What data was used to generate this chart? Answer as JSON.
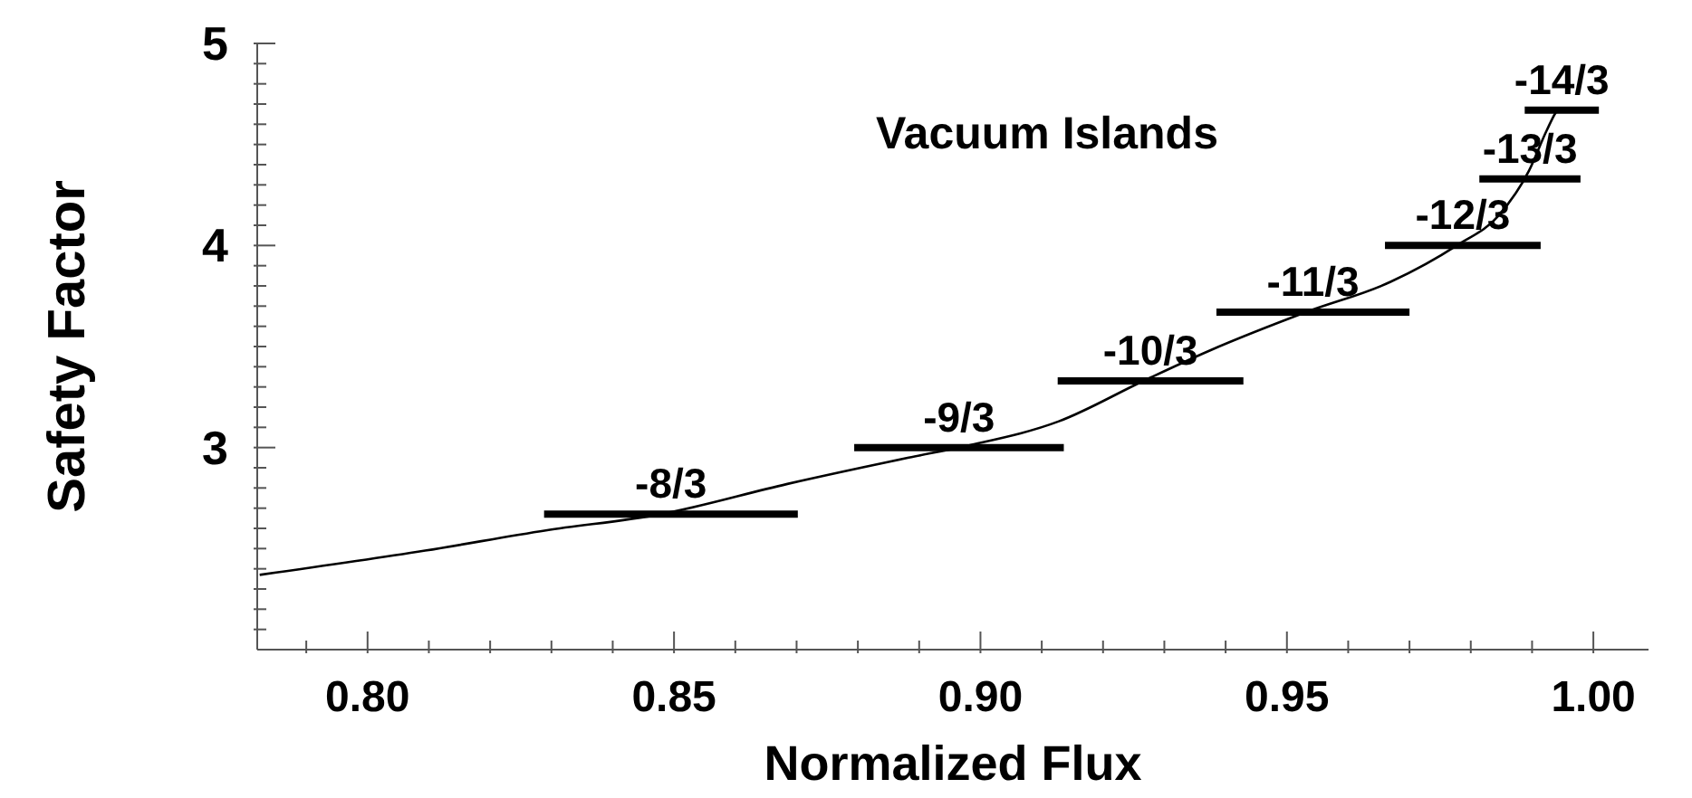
{
  "chart_data": {
    "type": "line",
    "xlabel": "Normalized Flux",
    "ylabel": "Safety Factor",
    "annotations": [
      "Vacuum Islands"
    ],
    "marker": "none",
    "line_style": "solid",
    "xlim": [
      0.782,
      1.009
    ],
    "ylim": [
      2,
      5
    ],
    "xticks": [
      {
        "value": 0.79,
        "label": null
      },
      {
        "value": 0.8,
        "label": "0.80"
      },
      {
        "value": 0.81,
        "label": null
      },
      {
        "value": 0.82,
        "label": null
      },
      {
        "value": 0.83,
        "label": null
      },
      {
        "value": 0.84,
        "label": null
      },
      {
        "value": 0.85,
        "label": "0.85"
      },
      {
        "value": 0.86,
        "label": null
      },
      {
        "value": 0.87,
        "label": null
      },
      {
        "value": 0.88,
        "label": null
      },
      {
        "value": 0.89,
        "label": null
      },
      {
        "value": 0.9,
        "label": "0.90"
      },
      {
        "value": 0.91,
        "label": null
      },
      {
        "value": 0.92,
        "label": null
      },
      {
        "value": 0.93,
        "label": null
      },
      {
        "value": 0.94,
        "label": null
      },
      {
        "value": 0.95,
        "label": "0.95"
      },
      {
        "value": 0.96,
        "label": null
      },
      {
        "value": 0.97,
        "label": null
      },
      {
        "value": 0.98,
        "label": null
      },
      {
        "value": 0.99,
        "label": null
      },
      {
        "value": 1.0,
        "label": "1.00"
      }
    ],
    "yticks": [
      {
        "value": 2.1,
        "label": null
      },
      {
        "value": 2.2,
        "label": null
      },
      {
        "value": 2.3,
        "label": null
      },
      {
        "value": 2.4,
        "label": null
      },
      {
        "value": 2.5,
        "label": null
      },
      {
        "value": 2.6,
        "label": null
      },
      {
        "value": 2.7,
        "label": null
      },
      {
        "value": 2.8,
        "label": null
      },
      {
        "value": 2.9,
        "label": null
      },
      3,
      {
        "value": 3.1,
        "label": null
      },
      {
        "value": 3.2,
        "label": null
      },
      {
        "value": 3.3,
        "label": null
      },
      {
        "value": 3.4,
        "label": null
      },
      {
        "value": 3.5,
        "label": null
      },
      {
        "value": 3.6,
        "label": null
      },
      {
        "value": 3.7,
        "label": null
      },
      {
        "value": 3.8,
        "label": null
      },
      {
        "value": 3.9,
        "label": null
      },
      4,
      {
        "value": 4.1,
        "label": null
      },
      {
        "value": 4.2,
        "label": null
      },
      {
        "value": 4.3,
        "label": null
      },
      {
        "value": 4.4,
        "label": null
      },
      {
        "value": 4.5,
        "label": null
      },
      {
        "value": 4.6,
        "label": null
      },
      {
        "value": 4.7,
        "label": null
      },
      {
        "value": 4.8,
        "label": null
      },
      {
        "value": 4.9,
        "label": null
      },
      5
    ],
    "series": [
      {
        "color": "#000000",
        "x": [
          0.7824,
          0.8094,
          0.8291,
          0.8478,
          0.8685,
          0.8883,
          0.898,
          0.9128,
          0.9266,
          0.9374,
          0.9531,
          0.9669,
          0.9777,
          0.9846,
          0.9895,
          0.9924,
          0.9939,
          0.9944
        ],
        "values": [
          2.37,
          2.49,
          2.59,
          2.67,
          2.82,
          2.95,
          3.01,
          3.13,
          3.33,
          3.48,
          3.67,
          3.82,
          4.0,
          4.15,
          4.37,
          4.57,
          4.66,
          4.68
        ]
      },
      {
        "name": "-8/3",
        "color": "#000000",
        "x": [
          0.8288,
          0.8702
        ],
        "values": [
          2.67,
          2.67
        ]
      },
      {
        "name": "-9/3",
        "color": "#000000",
        "x": [
          0.8794,
          0.9136
        ],
        "values": [
          3.0,
          3.0
        ]
      },
      {
        "name": "-10/3",
        "color": "#000000",
        "x": [
          0.9126,
          0.9429
        ],
        "values": [
          3.33,
          3.33
        ]
      },
      {
        "name": "-11/3",
        "color": "#000000",
        "x": [
          0.9385,
          0.97
        ],
        "values": [
          3.67,
          3.67
        ]
      },
      {
        "name": "-12/3",
        "color": "#000000",
        "x": [
          0.966,
          0.9914
        ],
        "values": [
          4.0,
          4.0
        ]
      },
      {
        "name": "-13/3",
        "color": "#000000",
        "x": [
          0.9814,
          0.9979
        ],
        "values": [
          4.33,
          4.33
        ]
      },
      {
        "name": "-14/3",
        "color": "#000000",
        "x": [
          0.9888,
          1.0009
        ],
        "values": [
          4.67,
          4.67
        ]
      }
    ]
  }
}
